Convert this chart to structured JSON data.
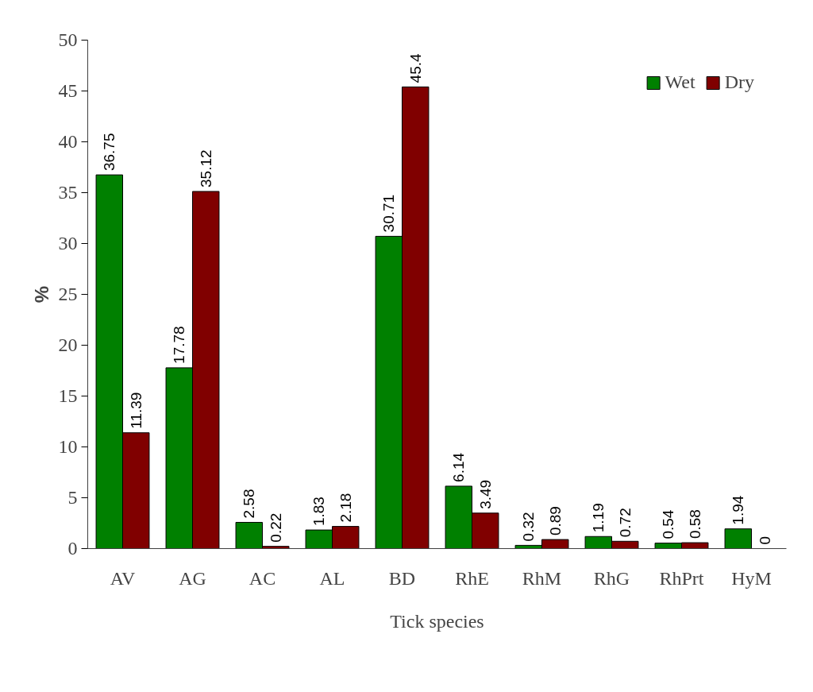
{
  "chart_data": {
    "type": "bar",
    "xlabel": "Tick species",
    "ylabel": "%",
    "categories": [
      "AV",
      "AG",
      "AC",
      "AL",
      "BD",
      "RhE",
      "RhM",
      "RhG",
      "RhPrt",
      "HyM"
    ],
    "series": [
      {
        "name": "Wet",
        "color": "#008000",
        "values": [
          36.75,
          17.78,
          2.58,
          1.83,
          30.71,
          6.14,
          0.32,
          1.19,
          0.54,
          1.94
        ]
      },
      {
        "name": "Dry",
        "color": "#800000",
        "values": [
          11.39,
          35.12,
          0.22,
          2.18,
          45.4,
          3.49,
          0.89,
          0.72,
          0.58,
          0
        ]
      }
    ],
    "ylim": [
      0,
      50
    ],
    "yticks": [
      0,
      5,
      10,
      15,
      20,
      25,
      30,
      35,
      40,
      45,
      50
    ],
    "data_labels": true,
    "legend": "top right",
    "grid": false
  }
}
